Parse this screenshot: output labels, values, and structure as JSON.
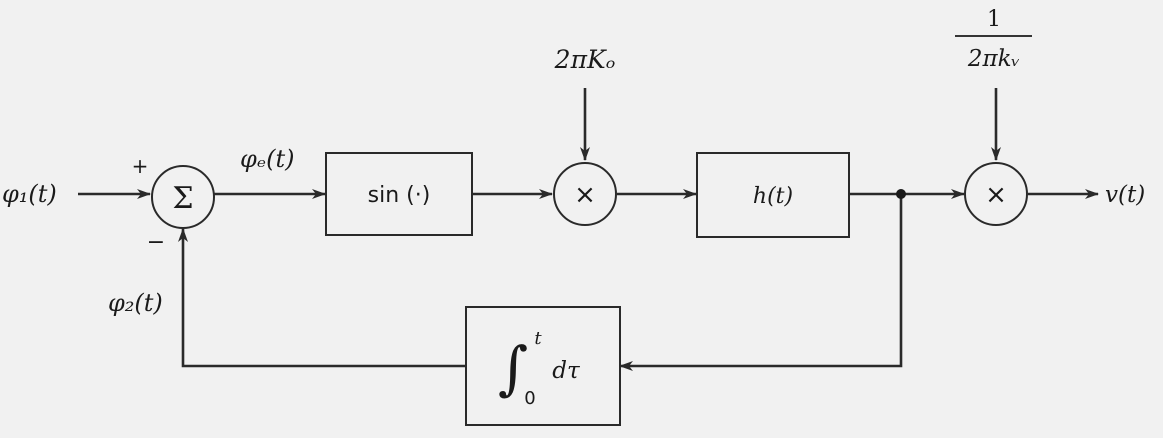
{
  "signals": {
    "input": "φ₁(t)",
    "error": "φₑ(t)",
    "feedback": "φ₂(t)",
    "output": "v(t)"
  },
  "summer": {
    "symbol": "Σ",
    "plus_sign": "+",
    "minus_sign": "−"
  },
  "blocks": {
    "nonlinearity": "sin (·)",
    "filter": "h(t)",
    "integrator": {
      "integral_sign": "∫",
      "upper_limit": "t",
      "lower_limit": "0",
      "integrand": "dτ"
    }
  },
  "multipliers": {
    "symbol": "×",
    "gain_vco": "2πKₒ",
    "gain_out": {
      "numerator": "1",
      "denominator": "2πkᵥ"
    }
  }
}
